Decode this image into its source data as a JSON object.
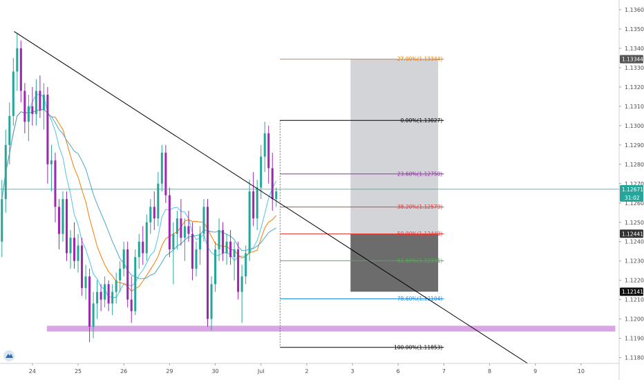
{
  "chart_data": {
    "type": "candlestick",
    "y_ticks": [
      "1.13600",
      "1.13500",
      "1.13400",
      "1.13300",
      "1.13200",
      "1.13100",
      "1.13000",
      "1.12900",
      "1.12800",
      "1.12700",
      "1.12600",
      "1.12500",
      "1.12400",
      "1.12300",
      "1.12200",
      "1.12100",
      "1.12000",
      "1.11900",
      "1.11800"
    ],
    "x_ticks": [
      {
        "label": "24",
        "bar": 8
      },
      {
        "label": "25",
        "bar": 20
      },
      {
        "label": "26",
        "bar": 32
      },
      {
        "label": "29",
        "bar": 44
      },
      {
        "label": "30",
        "bar": 56
      },
      {
        "label": "Jul",
        "bar": 68
      },
      {
        "label": "2",
        "bar": 80
      },
      {
        "label": "3",
        "bar": 92
      },
      {
        "label": "6",
        "bar": 104
      },
      {
        "label": "7",
        "bar": 116
      },
      {
        "label": "8",
        "bar": 128
      },
      {
        "label": "9",
        "bar": 140
      },
      {
        "label": "10",
        "bar": 152
      }
    ],
    "ylim": [
      1.1177,
      1.1365
    ],
    "xlim": [
      -0.5,
      162
    ],
    "colors": {
      "up": "#26a69a",
      "down": "#9c27b0",
      "ma_fast": "#4fc3e8",
      "ma_mid": "#f57c00",
      "ma_slow": "#4aa8c9",
      "trend": "#000000",
      "support": "#d8a6e2",
      "price_line": "#26a69a"
    },
    "last_price": {
      "label": "1.12671",
      "value": 1.12671,
      "countdown": "31:02"
    },
    "price_tags": [
      {
        "label": "1.13344",
        "value": 1.13344,
        "bg": "#555555"
      },
      {
        "label": "1.12441",
        "value": 1.12441,
        "bg": "#333333"
      },
      {
        "label": "1.12141",
        "value": 1.12141,
        "bg": "#111111"
      }
    ],
    "fib_levels": [
      {
        "label": "-27.00%(1.13344)",
        "value": 1.13344,
        "color": "#f57c00"
      },
      {
        "label": "0.00%(1.13027)",
        "value": 1.13027,
        "color": "#000000"
      },
      {
        "label": "23.60%(1.12750)",
        "value": 1.1275,
        "color": "#9c27b0"
      },
      {
        "label": "38.20%(1.12579)",
        "value": 1.12579,
        "color": "#e53935"
      },
      {
        "label": "50.00%(1.12440)",
        "value": 1.1244,
        "color": "#e53935"
      },
      {
        "label": "61.80%(1.12301)",
        "value": 1.12301,
        "color": "#4caf50"
      },
      {
        "label": "78.60%(1.12104)",
        "value": 1.12104,
        "color": "#1e88e5"
      },
      {
        "label": "100.00%(1.11853)",
        "value": 1.11853,
        "color": "#000000"
      }
    ],
    "fib_range": {
      "bar_start": 73,
      "bar_end": 116
    },
    "trendline": {
      "p1": {
        "bar": 3.2,
        "value": 1.13487
      },
      "p2": {
        "bar": 138,
        "value": 1.1177
      }
    },
    "support_zone": {
      "bar_start": 11.8,
      "bar_end": 161,
      "top": 1.11965,
      "bottom": 1.11935
    },
    "target_box": {
      "bar_start": 91.5,
      "bar_end": 114.5,
      "top": 1.13344,
      "bottom": 1.12441,
      "color": "#d3d4d8"
    },
    "stop_box": {
      "bar_start": 91.5,
      "bar_end": 114.5,
      "top": 1.12441,
      "bottom": 1.12141,
      "color": "#6c6c6c"
    },
    "ohlc": [
      [
        1.124,
        1.1272,
        1.1232,
        1.1262
      ],
      [
        1.1262,
        1.1298,
        1.1255,
        1.129
      ],
      [
        1.129,
        1.1312,
        1.128,
        1.1305
      ],
      [
        1.1305,
        1.1335,
        1.13,
        1.1328
      ],
      [
        1.1328,
        1.1348,
        1.1318,
        1.134
      ],
      [
        1.134,
        1.1344,
        1.1312,
        1.1318
      ],
      [
        1.1318,
        1.1322,
        1.1296,
        1.1302
      ],
      [
        1.1302,
        1.1316,
        1.1292,
        1.131
      ],
      [
        1.131,
        1.132,
        1.13,
        1.1306
      ],
      [
        1.1306,
        1.1324,
        1.13,
        1.1318
      ],
      [
        1.1318,
        1.1326,
        1.1304,
        1.1308
      ],
      [
        1.1308,
        1.1322,
        1.1298,
        1.1316
      ],
      [
        1.1316,
        1.132,
        1.127,
        1.128
      ],
      [
        1.128,
        1.129,
        1.1266,
        1.1282
      ],
      [
        1.1282,
        1.1286,
        1.125,
        1.1258
      ],
      [
        1.1258,
        1.1262,
        1.1236,
        1.1244
      ],
      [
        1.1244,
        1.1266,
        1.124,
        1.1262
      ],
      [
        1.1262,
        1.1266,
        1.123,
        1.1234
      ],
      [
        1.1234,
        1.1246,
        1.1226,
        1.1242
      ],
      [
        1.1242,
        1.125,
        1.1226,
        1.123
      ],
      [
        1.123,
        1.1244,
        1.1224,
        1.1238
      ],
      [
        1.1238,
        1.1242,
        1.1212,
        1.1216
      ],
      [
        1.1216,
        1.1228,
        1.121,
        1.1222
      ],
      [
        1.1222,
        1.1226,
        1.1188,
        1.1196
      ],
      [
        1.1196,
        1.1214,
        1.119,
        1.1208
      ],
      [
        1.1208,
        1.122,
        1.12,
        1.1214
      ],
      [
        1.1214,
        1.1218,
        1.1204,
        1.121
      ],
      [
        1.121,
        1.1222,
        1.1206,
        1.1218
      ],
      [
        1.1218,
        1.122,
        1.1204,
        1.1208
      ],
      [
        1.1208,
        1.1218,
        1.1202,
        1.1214
      ],
      [
        1.1214,
        1.1224,
        1.1208,
        1.122
      ],
      [
        1.122,
        1.123,
        1.1214,
        1.1226
      ],
      [
        1.1226,
        1.124,
        1.1222,
        1.1236
      ],
      [
        1.1236,
        1.124,
        1.1206,
        1.121
      ],
      [
        1.121,
        1.1222,
        1.1198,
        1.1204
      ],
      [
        1.1204,
        1.1236,
        1.1202,
        1.1232
      ],
      [
        1.1232,
        1.1244,
        1.1226,
        1.124
      ],
      [
        1.124,
        1.1248,
        1.1228,
        1.1234
      ],
      [
        1.1234,
        1.1254,
        1.123,
        1.125
      ],
      [
        1.125,
        1.1262,
        1.1244,
        1.1258
      ],
      [
        1.1258,
        1.1266,
        1.1246,
        1.1252
      ],
      [
        1.1252,
        1.1276,
        1.1248,
        1.127
      ],
      [
        1.127,
        1.129,
        1.1266,
        1.1286
      ],
      [
        1.1286,
        1.129,
        1.126,
        1.1264
      ],
      [
        1.1264,
        1.1268,
        1.1232,
        1.1236
      ],
      [
        1.1236,
        1.125,
        1.1218,
        1.1244
      ],
      [
        1.1244,
        1.1256,
        1.1236,
        1.1252
      ],
      [
        1.1252,
        1.1262,
        1.1238,
        1.1242
      ],
      [
        1.1242,
        1.1252,
        1.123,
        1.1248
      ],
      [
        1.1248,
        1.1256,
        1.124,
        1.1244
      ],
      [
        1.1244,
        1.125,
        1.122,
        1.1226
      ],
      [
        1.1226,
        1.124,
        1.1222,
        1.1236
      ],
      [
        1.1236,
        1.1248,
        1.1228,
        1.1244
      ],
      [
        1.1244,
        1.1262,
        1.124,
        1.1258
      ],
      [
        1.1258,
        1.1262,
        1.1196,
        1.12
      ],
      [
        1.12,
        1.1222,
        1.1194,
        1.1218
      ],
      [
        1.1218,
        1.124,
        1.1214,
        1.1236
      ],
      [
        1.1236,
        1.1252,
        1.123,
        1.1246
      ],
      [
        1.1246,
        1.125,
        1.123,
        1.1234
      ],
      [
        1.1234,
        1.1244,
        1.1228,
        1.124
      ],
      [
        1.124,
        1.1246,
        1.1228,
        1.1232
      ],
      [
        1.1232,
        1.124,
        1.122,
        1.1236
      ],
      [
        1.1236,
        1.124,
        1.121,
        1.1214
      ],
      [
        1.1214,
        1.1228,
        1.1198,
        1.1222
      ],
      [
        1.1222,
        1.1238,
        1.1218,
        1.1234
      ],
      [
        1.1234,
        1.1272,
        1.123,
        1.1266
      ],
      [
        1.1266,
        1.1276,
        1.1248,
        1.1252
      ],
      [
        1.1252,
        1.1272,
        1.1246,
        1.1268
      ],
      [
        1.1268,
        1.129,
        1.1262,
        1.1284
      ],
      [
        1.1284,
        1.1302,
        1.1276,
        1.1296
      ],
      [
        1.1296,
        1.13,
        1.127,
        1.1278
      ],
      [
        1.1278,
        1.1286,
        1.1256,
        1.1262
      ],
      [
        1.1262,
        1.1268,
        1.1258,
        1.1266
      ]
    ]
  }
}
